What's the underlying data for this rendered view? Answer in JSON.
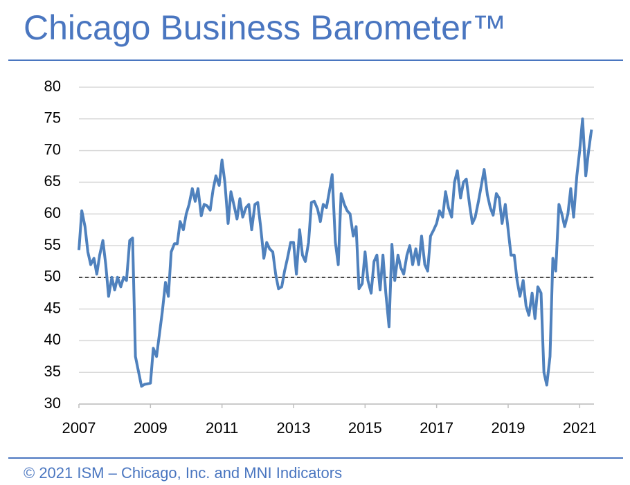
{
  "chart_data": {
    "type": "line",
    "title": "Chicago Business Barometer™",
    "footer": "© 2021 ISM – Chicago, Inc. and MNI Indicators",
    "xlim": [
      2007,
      2021.4
    ],
    "xticks": [
      2007,
      2009,
      2011,
      2013,
      2015,
      2017,
      2019,
      2021
    ],
    "ylim": [
      30,
      80
    ],
    "yticks": [
      30,
      35,
      40,
      45,
      50,
      55,
      60,
      65,
      70,
      75,
      80
    ],
    "grid": true,
    "reference_line": 50,
    "x": [
      2007.0,
      2007.08,
      2007.17,
      2007.25,
      2007.33,
      2007.42,
      2007.5,
      2007.58,
      2007.67,
      2007.75,
      2007.83,
      2007.92,
      2008.0,
      2008.08,
      2008.17,
      2008.25,
      2008.33,
      2008.42,
      2008.5,
      2008.58,
      2008.67,
      2008.75,
      2008.83,
      2008.92,
      2009.0,
      2009.08,
      2009.17,
      2009.25,
      2009.33,
      2009.42,
      2009.5,
      2009.58,
      2009.67,
      2009.75,
      2009.83,
      2009.92,
      2010.0,
      2010.08,
      2010.17,
      2010.25,
      2010.33,
      2010.42,
      2010.5,
      2010.58,
      2010.67,
      2010.75,
      2010.83,
      2010.92,
      2011.0,
      2011.08,
      2011.17,
      2011.25,
      2011.33,
      2011.42,
      2011.5,
      2011.58,
      2011.67,
      2011.75,
      2011.83,
      2011.92,
      2012.0,
      2012.08,
      2012.17,
      2012.25,
      2012.33,
      2012.42,
      2012.5,
      2012.58,
      2012.67,
      2012.75,
      2012.83,
      2012.92,
      2013.0,
      2013.08,
      2013.17,
      2013.25,
      2013.33,
      2013.42,
      2013.5,
      2013.58,
      2013.67,
      2013.75,
      2013.83,
      2013.92,
      2014.0,
      2014.08,
      2014.17,
      2014.25,
      2014.33,
      2014.42,
      2014.5,
      2014.58,
      2014.67,
      2014.75,
      2014.83,
      2014.92,
      2015.0,
      2015.08,
      2015.17,
      2015.25,
      2015.33,
      2015.42,
      2015.5,
      2015.58,
      2015.67,
      2015.75,
      2015.83,
      2015.92,
      2016.0,
      2016.08,
      2016.17,
      2016.25,
      2016.33,
      2016.42,
      2016.5,
      2016.58,
      2016.67,
      2016.75,
      2016.83,
      2016.92,
      2017.0,
      2017.08,
      2017.17,
      2017.25,
      2017.33,
      2017.42,
      2017.5,
      2017.58,
      2017.67,
      2017.75,
      2017.83,
      2017.92,
      2018.0,
      2018.08,
      2018.17,
      2018.25,
      2018.33,
      2018.42,
      2018.5,
      2018.58,
      2018.67,
      2018.75,
      2018.83,
      2018.92,
      2019.0,
      2019.08,
      2019.17,
      2019.25,
      2019.33,
      2019.42,
      2019.5,
      2019.58,
      2019.67,
      2019.75,
      2019.83,
      2019.92,
      2020.0,
      2020.08,
      2020.17,
      2020.25,
      2020.33,
      2020.42,
      2020.5,
      2020.58,
      2020.67,
      2020.75,
      2020.83,
      2020.92,
      2021.0,
      2021.08,
      2021.17,
      2021.25,
      2021.33
    ],
    "series": [
      {
        "color": "#4f81bd",
        "values": [
          54.3,
          60.5,
          58,
          54,
          52,
          53,
          50.5,
          53.5,
          55.8,
          52,
          47,
          50,
          48,
          50,
          48.5,
          50,
          49.5,
          55.8,
          56.2,
          37.5,
          35,
          32.8,
          33.1,
          33.2,
          33.3,
          38.8,
          37.5,
          41,
          44.5,
          49.2,
          47,
          54,
          55.3,
          55.3,
          58.8,
          57.5,
          60,
          61.5,
          64,
          62,
          64,
          59.7,
          61.5,
          61.3,
          60.6,
          63.8,
          66,
          64.5,
          68.5,
          65,
          58.5,
          63.5,
          61.5,
          59.2,
          62.4,
          59.5,
          61,
          61.5,
          57.5,
          61.5,
          61.8,
          58,
          53,
          55.5,
          54.5,
          54,
          50.5,
          48.2,
          48.5,
          51,
          53,
          55.5,
          55.5,
          50.5,
          57.5,
          53.5,
          52.5,
          55.5,
          61.8,
          62,
          60.8,
          58.8,
          61.5,
          61,
          63.5,
          66.2,
          55.5,
          52,
          63.2,
          61.5,
          60.5,
          60,
          56.5,
          58,
          48.2,
          49,
          54,
          49.5,
          47.5,
          52.5,
          53.5,
          48,
          53.5,
          47.5,
          42.2,
          55.2,
          49.5,
          53.5,
          51.5,
          50.5,
          53.5,
          55,
          52,
          54.5,
          52,
          56.5,
          52,
          51,
          56.5,
          57.5,
          58.5,
          60.5,
          59.5,
          63.5,
          61,
          59.5,
          65,
          66.8,
          62.5,
          65,
          65.5,
          61.5,
          58.5,
          59.5,
          62,
          64.5,
          67,
          63,
          61,
          59.8,
          63.2,
          62.5,
          58.5,
          61.5,
          57.5,
          53.5,
          53.5,
          49.5,
          47,
          49.5,
          45.5,
          44,
          47.5,
          43.5,
          48.5,
          47.5,
          35,
          33,
          37.5,
          53,
          51,
          61.5,
          60,
          58,
          60,
          64,
          59.5,
          66,
          70,
          75,
          66,
          70,
          73.3
        ]
      }
    ]
  }
}
